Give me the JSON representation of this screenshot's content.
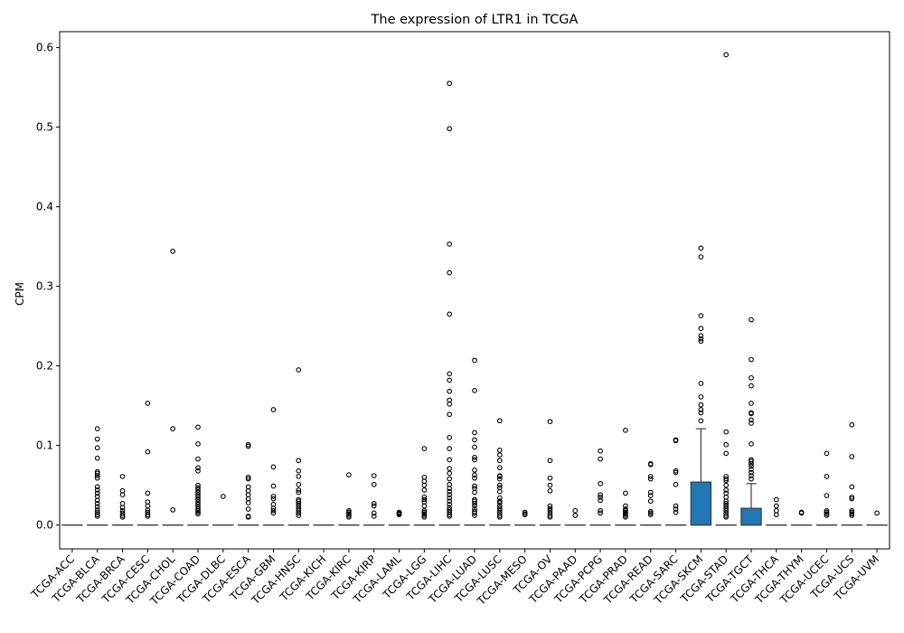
{
  "chart_data": {
    "type": "box",
    "title": "The expression of LTR1 in TCGA",
    "xlabel": "",
    "ylabel": "CPM",
    "ylim": [
      -0.03,
      0.62
    ],
    "yticks": [
      0.0,
      0.1,
      0.2,
      0.3,
      0.4,
      0.5,
      0.6
    ],
    "ytick_labels": [
      "0.0",
      "0.1",
      "0.2",
      "0.3",
      "0.4",
      "0.5",
      "0.6"
    ],
    "grid": false,
    "box_color": "#1f77b4",
    "categories": [
      "TCGA-ACC",
      "TCGA-BLCA",
      "TCGA-BRCA",
      "TCGA-CESC",
      "TCGA-CHOL",
      "TCGA-COAD",
      "TCGA-DLBC",
      "TCGA-ESCA",
      "TCGA-GBM",
      "TCGA-HNSC",
      "TCGA-KICH",
      "TCGA-KIRC",
      "TCGA-KIRP",
      "TCGA-LAML",
      "TCGA-LGG",
      "TCGA-LIHC",
      "TCGA-LUAD",
      "TCGA-LUSC",
      "TCGA-MESO",
      "TCGA-OV",
      "TCGA-PAAD",
      "TCGA-PCPG",
      "TCGA-PRAD",
      "TCGA-READ",
      "TCGA-SARC",
      "TCGA-SKCM",
      "TCGA-STAD",
      "TCGA-TGCT",
      "TCGA-THCA",
      "TCGA-THYM",
      "TCGA-UCEC",
      "TCGA-UCS",
      "TCGA-UVM"
    ],
    "boxes": [
      {
        "q1": 0,
        "median": 0,
        "q3": 0,
        "whisker_low": 0,
        "whisker_high": 0,
        "outliers": []
      },
      {
        "q1": 0,
        "median": 0,
        "q3": 0,
        "whisker_low": 0,
        "whisker_high": 0,
        "outliers": [
          0.121,
          0.108,
          0.097,
          0.084,
          0.067,
          0.065,
          0.062,
          0.059,
          0.048,
          0.044,
          0.04,
          0.036,
          0.031,
          0.027,
          0.023,
          0.019,
          0.016,
          0.013,
          0.011
        ]
      },
      {
        "q1": 0,
        "median": 0,
        "q3": 0,
        "whisker_low": 0,
        "whisker_high": 0,
        "outliers": [
          0.061,
          0.043,
          0.038,
          0.027,
          0.022,
          0.018,
          0.015,
          0.012,
          0.01
        ]
      },
      {
        "q1": 0,
        "median": 0,
        "q3": 0,
        "whisker_low": 0,
        "whisker_high": 0,
        "outliers": [
          0.153,
          0.092,
          0.04,
          0.029,
          0.024,
          0.019,
          0.016,
          0.013,
          0.011
        ]
      },
      {
        "q1": 0,
        "median": 0,
        "q3": 0,
        "whisker_low": 0,
        "whisker_high": 0,
        "outliers": [
          0.344,
          0.121,
          0.019
        ]
      },
      {
        "q1": 0,
        "median": 0,
        "q3": 0,
        "whisker_low": 0,
        "whisker_high": 0,
        "outliers": [
          0.123,
          0.102,
          0.083,
          0.072,
          0.068,
          0.05,
          0.047,
          0.044,
          0.041,
          0.038,
          0.035,
          0.032,
          0.029,
          0.026,
          0.023,
          0.02,
          0.018,
          0.016,
          0.014
        ]
      },
      {
        "q1": 0,
        "median": 0,
        "q3": 0,
        "whisker_low": 0,
        "whisker_high": 0,
        "outliers": [
          0.036
        ]
      },
      {
        "q1": 0,
        "median": 0,
        "q3": 0,
        "whisker_low": 0,
        "whisker_high": 0,
        "outliers": [
          0.101,
          0.099,
          0.06,
          0.058,
          0.048,
          0.043,
          0.038,
          0.033,
          0.028,
          0.02,
          0.011,
          0.01
        ]
      },
      {
        "q1": 0,
        "median": 0,
        "q3": 0,
        "whisker_low": 0,
        "whisker_high": 0,
        "outliers": [
          0.145,
          0.073,
          0.049,
          0.036,
          0.033,
          0.026,
          0.021,
          0.018,
          0.015
        ]
      },
      {
        "q1": 0,
        "median": 0,
        "q3": 0,
        "whisker_low": 0,
        "whisker_high": 0,
        "outliers": [
          0.195,
          0.081,
          0.068,
          0.061,
          0.051,
          0.044,
          0.041,
          0.032,
          0.03,
          0.027,
          0.024,
          0.021,
          0.018,
          0.015,
          0.012
        ]
      },
      {
        "q1": 0,
        "median": 0,
        "q3": 0,
        "whisker_low": 0,
        "whisker_high": 0,
        "outliers": []
      },
      {
        "q1": 0,
        "median": 0,
        "q3": 0,
        "whisker_low": 0,
        "whisker_high": 0,
        "outliers": [
          0.063,
          0.018,
          0.016,
          0.014,
          0.012,
          0.01
        ]
      },
      {
        "q1": 0,
        "median": 0,
        "q3": 0,
        "whisker_low": 0,
        "whisker_high": 0,
        "outliers": [
          0.062,
          0.051,
          0.027,
          0.024,
          0.015,
          0.011
        ]
      },
      {
        "q1": 0,
        "median": 0,
        "q3": 0,
        "whisker_low": 0,
        "whisker_high": 0,
        "outliers": [
          0.016,
          0.015,
          0.014,
          0.013
        ]
      },
      {
        "q1": 0,
        "median": 0,
        "q3": 0,
        "whisker_low": 0,
        "whisker_high": 0,
        "outliers": [
          0.096,
          0.06,
          0.055,
          0.05,
          0.044,
          0.035,
          0.032,
          0.029,
          0.024,
          0.018,
          0.016,
          0.014,
          0.012,
          0.01
        ]
      },
      {
        "q1": 0,
        "median": 0,
        "q3": 0,
        "whisker_low": 0,
        "whisker_high": 0,
        "outliers": [
          0.555,
          0.498,
          0.353,
          0.317,
          0.265,
          0.19,
          0.182,
          0.168,
          0.157,
          0.152,
          0.139,
          0.11,
          0.096,
          0.082,
          0.071,
          0.065,
          0.058,
          0.051,
          0.046,
          0.042,
          0.038,
          0.034,
          0.03,
          0.026,
          0.022,
          0.019,
          0.016,
          0.013,
          0.011
        ]
      },
      {
        "q1": 0,
        "median": 0,
        "q3": 0,
        "whisker_low": 0,
        "whisker_high": 0,
        "outliers": [
          0.207,
          0.169,
          0.116,
          0.107,
          0.098,
          0.085,
          0.082,
          0.069,
          0.063,
          0.059,
          0.049,
          0.046,
          0.041,
          0.032,
          0.03,
          0.027,
          0.024,
          0.02,
          0.017,
          0.015,
          0.012
        ]
      },
      {
        "q1": 0,
        "median": 0,
        "q3": 0,
        "whisker_low": 0,
        "whisker_high": 0,
        "outliers": [
          0.131,
          0.094,
          0.088,
          0.081,
          0.072,
          0.062,
          0.061,
          0.058,
          0.05,
          0.047,
          0.042,
          0.034,
          0.03,
          0.028,
          0.024,
          0.021,
          0.018,
          0.015,
          0.012,
          0.01
        ]
      },
      {
        "q1": 0,
        "median": 0,
        "q3": 0,
        "whisker_low": 0,
        "whisker_high": 0,
        "outliers": [
          0.016,
          0.014,
          0.013
        ]
      },
      {
        "q1": 0,
        "median": 0,
        "q3": 0,
        "whisker_low": 0,
        "whisker_high": 0,
        "outliers": [
          0.13,
          0.081,
          0.059,
          0.05,
          0.043,
          0.024,
          0.021,
          0.018,
          0.015,
          0.012,
          0.01
        ]
      },
      {
        "q1": 0,
        "median": 0,
        "q3": 0,
        "whisker_low": 0,
        "whisker_high": 0,
        "outliers": [
          0.018,
          0.012
        ]
      },
      {
        "q1": 0,
        "median": 0,
        "q3": 0,
        "whisker_low": 0,
        "whisker_high": 0,
        "outliers": [
          0.093,
          0.083,
          0.052,
          0.038,
          0.035,
          0.031,
          0.018,
          0.015
        ]
      },
      {
        "q1": 0,
        "median": 0,
        "q3": 0,
        "whisker_low": 0,
        "whisker_high": 0,
        "outliers": [
          0.119,
          0.04,
          0.024,
          0.02,
          0.018,
          0.016,
          0.014,
          0.012,
          0.01
        ]
      },
      {
        "q1": 0,
        "median": 0,
        "q3": 0,
        "whisker_low": 0,
        "whisker_high": 0,
        "outliers": [
          0.077,
          0.076,
          0.061,
          0.058,
          0.041,
          0.037,
          0.03,
          0.017,
          0.015,
          0.013
        ]
      },
      {
        "q1": 0,
        "median": 0,
        "q3": 0,
        "whisker_low": 0,
        "whisker_high": 0,
        "outliers": [
          0.107,
          0.106,
          0.068,
          0.066,
          0.051,
          0.024,
          0.02,
          0.016
        ]
      },
      {
        "q1": 0,
        "median": 0,
        "q3": 0.054,
        "whisker_low": 0,
        "whisker_high": 0.121,
        "outliers": [
          0.348,
          0.337,
          0.263,
          0.247,
          0.238,
          0.234,
          0.231,
          0.178,
          0.161,
          0.151,
          0.145,
          0.141,
          0.131
        ]
      },
      {
        "q1": 0,
        "median": 0,
        "q3": 0,
        "whisker_low": 0,
        "whisker_high": 0,
        "outliers": [
          0.591,
          0.117,
          0.101,
          0.09,
          0.061,
          0.058,
          0.056,
          0.05,
          0.044,
          0.04,
          0.035,
          0.03,
          0.027,
          0.024,
          0.021,
          0.018,
          0.015,
          0.012,
          0.01
        ]
      },
      {
        "q1": 0,
        "median": 0,
        "q3": 0.021,
        "whisker_low": 0,
        "whisker_high": 0.052,
        "outliers": [
          0.258,
          0.208,
          0.185,
          0.175,
          0.153,
          0.141,
          0.14,
          0.132,
          0.128,
          0.102,
          0.082,
          0.08,
          0.077,
          0.074,
          0.07,
          0.066,
          0.062,
          0.058
        ]
      },
      {
        "q1": 0,
        "median": 0,
        "q3": 0,
        "whisker_low": 0,
        "whisker_high": 0,
        "outliers": [
          0.032,
          0.024,
          0.018,
          0.013
        ]
      },
      {
        "q1": 0,
        "median": 0,
        "q3": 0,
        "whisker_low": 0,
        "whisker_high": 0,
        "outliers": [
          0.016,
          0.015
        ]
      },
      {
        "q1": 0,
        "median": 0,
        "q3": 0,
        "whisker_low": 0,
        "whisker_high": 0,
        "outliers": [
          0.09,
          0.061,
          0.037,
          0.018,
          0.016,
          0.014,
          0.012
        ]
      },
      {
        "q1": 0,
        "median": 0,
        "q3": 0,
        "whisker_low": 0,
        "whisker_high": 0,
        "outliers": [
          0.126,
          0.086,
          0.048,
          0.035,
          0.033,
          0.018,
          0.016,
          0.014,
          0.012
        ]
      },
      {
        "q1": 0,
        "median": 0,
        "q3": 0,
        "whisker_low": 0,
        "whisker_high": 0,
        "outliers": [
          0.015
        ]
      }
    ]
  }
}
